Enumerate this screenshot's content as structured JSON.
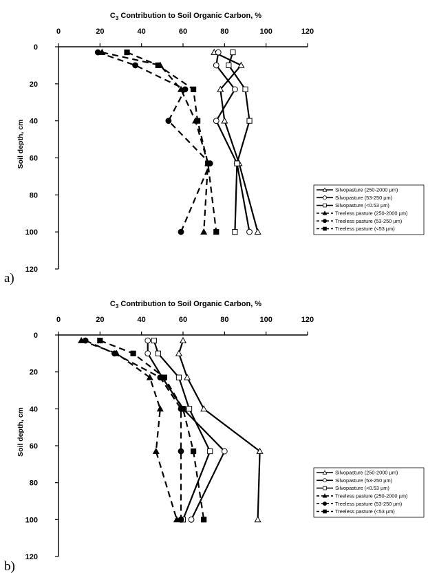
{
  "chart_data": [
    {
      "type": "line",
      "panel_label": "a)",
      "title_main": "C",
      "title_sub": "3",
      "title_rest": " Contribution to Soil Organic Carbon, %",
      "ylabel": "Soil depth, cm",
      "xlim": [
        0,
        120
      ],
      "ylim": [
        0,
        120
      ],
      "y_inverted": true,
      "x_ticks": [
        0,
        20,
        40,
        60,
        80,
        100,
        120
      ],
      "y_ticks": [
        0,
        20,
        40,
        60,
        80,
        100,
        120
      ],
      "legend_position": "right",
      "depths": [
        3,
        10,
        23,
        40,
        63,
        100
      ],
      "series": [
        {
          "name": "Silvopasture (250-2000 µm)",
          "marker": "triangle-open",
          "dash": "solid",
          "values": [
            75,
            88,
            78,
            80,
            87,
            96
          ]
        },
        {
          "name": "Silvopasture (53-250 µm)",
          "marker": "circle-open",
          "dash": "solid",
          "values": [
            77,
            76,
            85,
            76,
            86,
            92
          ]
        },
        {
          "name": "Silvopasture (<0.53 µm)",
          "marker": "square-open",
          "dash": "solid",
          "values": [
            84,
            82,
            90,
            92,
            86,
            85
          ]
        },
        {
          "name": "Treeless pasture (250-2000 µm)",
          "marker": "triangle-filled",
          "dash": "dashed",
          "values": [
            21,
            49,
            59,
            66,
            72,
            70
          ]
        },
        {
          "name": "Treeless pasture (53-250 µm)",
          "marker": "circle-filled",
          "dash": "dashed",
          "values": [
            19,
            37,
            61,
            53,
            73,
            59
          ]
        },
        {
          "name": "Treeless pasture (<53  µm)",
          "marker": "square-filled",
          "dash": "dashed",
          "values": [
            33,
            48,
            65,
            67,
            72,
            76
          ]
        }
      ]
    },
    {
      "type": "line",
      "panel_label": "b)",
      "title_main": "C",
      "title_sub": "3",
      "title_rest": " Contribution to Soil Organic Carbon, %",
      "ylabel": "Soil depth, cm",
      "xlim": [
        0,
        120
      ],
      "ylim": [
        0,
        120
      ],
      "y_inverted": true,
      "x_ticks": [
        0,
        20,
        40,
        60,
        80,
        100,
        120
      ],
      "y_ticks": [
        0,
        20,
        40,
        60,
        80,
        100,
        120
      ],
      "legend_position": "right",
      "depths": [
        3,
        10,
        23,
        40,
        63,
        100
      ],
      "series": [
        {
          "name": "Silvopasture (250-2000 µm)",
          "marker": "triangle-open",
          "dash": "solid",
          "values": [
            60,
            58,
            62,
            70,
            97,
            96
          ]
        },
        {
          "name": "Silvopasture (53-250 µm)",
          "marker": "circle-open",
          "dash": "solid",
          "values": [
            43,
            43,
            50,
            60,
            80,
            64
          ]
        },
        {
          "name": "Silvopasture (<0.53 µm)",
          "marker": "square-open",
          "dash": "solid",
          "values": [
            46,
            48,
            58,
            63,
            73,
            60
          ]
        },
        {
          "name": "Treeless pasture (250-2000 µm)",
          "marker": "triangle-filled",
          "dash": "dashed",
          "values": [
            11,
            28,
            44,
            49,
            47,
            57
          ]
        },
        {
          "name": "Treeless pasture (53-250 µm)",
          "marker": "circle-filled",
          "dash": "dashed",
          "values": [
            13,
            27,
            49,
            59,
            59,
            59
          ]
        },
        {
          "name": "Treeless pasture (<53  µm)",
          "marker": "square-filled",
          "dash": "dashed",
          "values": [
            20,
            36,
            51,
            60,
            65,
            70
          ]
        }
      ]
    }
  ]
}
